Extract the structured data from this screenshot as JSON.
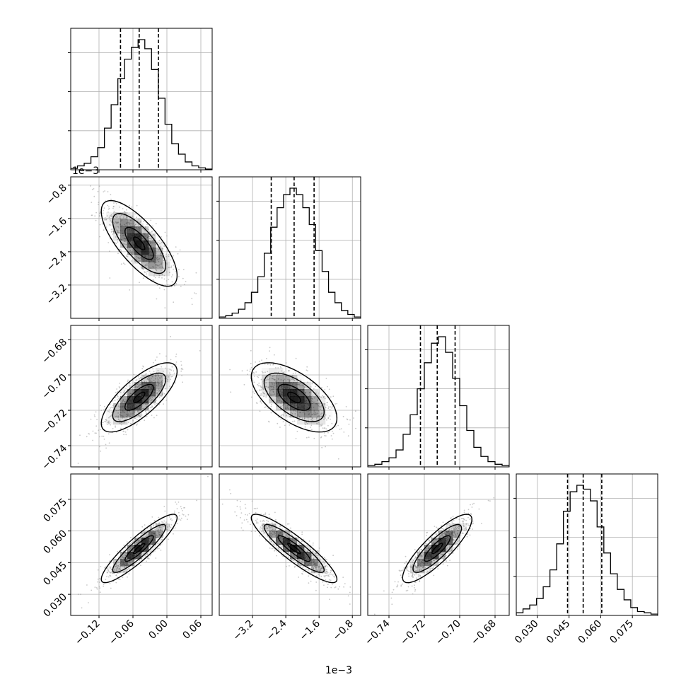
{
  "chart_data": {
    "type": "corner",
    "description_grid": "4x4 lower-triangular grid: 1D histograms on diagonal, 2D density/contours below",
    "grid": true,
    "parameters": [
      {
        "range": [
          -0.17,
          0.08
        ],
        "ticks": [
          {
            "value": -0.12,
            "label": "−0.12"
          },
          {
            "value": -0.06,
            "label": "−0.06"
          },
          {
            "value": 0.0,
            "label": "0.00"
          },
          {
            "value": 0.06,
            "label": "0.06"
          }
        ],
        "quantiles": [
          -0.082,
          -0.049,
          -0.015
        ],
        "hist": [
          0.01,
          0.03,
          0.05,
          0.1,
          0.17,
          0.32,
          0.5,
          0.7,
          0.85,
          0.94,
          1.0,
          0.93,
          0.77,
          0.55,
          0.35,
          0.2,
          0.12,
          0.06,
          0.03,
          0.015,
          0.005
        ]
      },
      {
        "offset_text": "1e−3",
        "range": [
          -4.0,
          -0.6
        ],
        "ticks": [
          {
            "value": -3.2,
            "label": "−3.2"
          },
          {
            "value": -2.4,
            "label": "−2.4"
          },
          {
            "value": -1.6,
            "label": "−1.6"
          },
          {
            "value": -0.8,
            "label": "−0.8"
          }
        ],
        "quantiles": [
          -2.75,
          -2.2,
          -1.72
        ],
        "hist": [
          0.01,
          0.02,
          0.04,
          0.07,
          0.12,
          0.2,
          0.32,
          0.5,
          0.7,
          0.85,
          0.95,
          1.0,
          0.95,
          0.85,
          0.72,
          0.52,
          0.36,
          0.2,
          0.12,
          0.06,
          0.03,
          0.01
        ]
      },
      {
        "range": [
          -0.752,
          -0.672
        ],
        "ticks": [
          {
            "value": -0.74,
            "label": "−0.74"
          },
          {
            "value": -0.72,
            "label": "−0.72"
          },
          {
            "value": -0.7,
            "label": "−0.70"
          },
          {
            "value": -0.68,
            "label": "−0.68"
          }
        ],
        "quantiles": [
          -0.7222,
          -0.7127,
          -0.7026
        ],
        "hist": [
          0.01,
          0.02,
          0.04,
          0.07,
          0.13,
          0.25,
          0.4,
          0.6,
          0.8,
          0.95,
          1.0,
          0.88,
          0.68,
          0.47,
          0.28,
          0.15,
          0.08,
          0.04,
          0.02,
          0.01
        ]
      },
      {
        "range": [
          0.02,
          0.087
        ],
        "ticks": [
          {
            "value": 0.03,
            "label": "0.030"
          },
          {
            "value": 0.045,
            "label": "0.045"
          },
          {
            "value": 0.06,
            "label": "0.060"
          },
          {
            "value": 0.075,
            "label": "0.075"
          }
        ],
        "quantiles": [
          0.0443,
          0.0517,
          0.0605
        ],
        "hist": [
          0.02,
          0.05,
          0.08,
          0.13,
          0.22,
          0.35,
          0.55,
          0.8,
          0.95,
          1.0,
          0.97,
          0.88,
          0.68,
          0.48,
          0.32,
          0.2,
          0.12,
          0.06,
          0.03,
          0.02,
          0.01
        ]
      }
    ],
    "pairs": [
      {
        "x": 0,
        "y": 1,
        "correlation": -0.75
      },
      {
        "x": 0,
        "y": 2,
        "correlation": 0.75
      },
      {
        "x": 1,
        "y": 2,
        "correlation": -0.6
      },
      {
        "x": 0,
        "y": 3,
        "correlation": 0.9
      },
      {
        "x": 1,
        "y": 3,
        "correlation": -0.9
      },
      {
        "x": 2,
        "y": 3,
        "correlation": 0.85
      }
    ],
    "colors": {
      "line": "#000000",
      "grid": "#b0b0b0",
      "density": "#000000"
    }
  }
}
